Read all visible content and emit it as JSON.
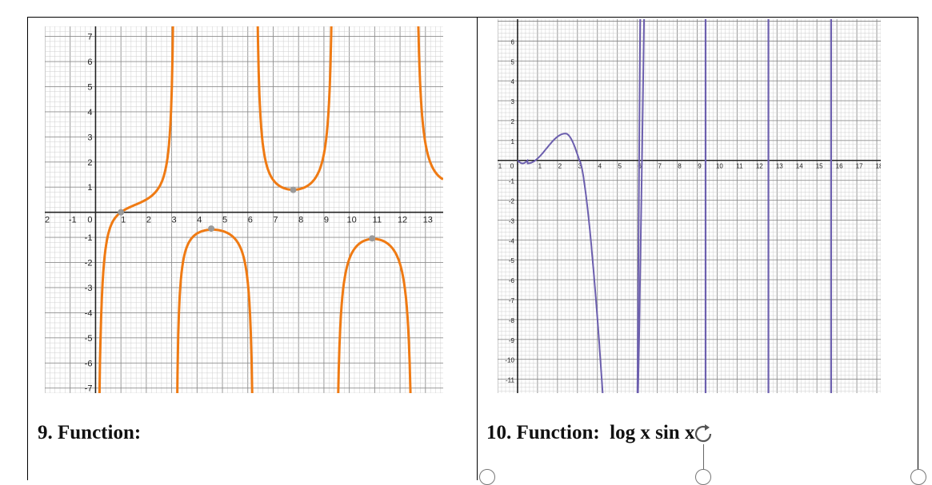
{
  "captions": {
    "left": "9. Function:",
    "right": "10. Function:  log x sin x"
  },
  "colors": {
    "graph9_curve": "#ef7a13",
    "graph10_curve": "#6c5fae",
    "grid_minor": "#cfcfcf",
    "grid_major": "#8e8e8e",
    "axis": "#222222",
    "point": "#9a9a9a"
  },
  "chart_data": [
    {
      "type": "line",
      "title": "",
      "function": "",
      "xlim": [
        -2,
        13.7
      ],
      "ylim": [
        -7.2,
        7.4
      ],
      "x_tick_labels": [
        "2",
        "-1",
        "0",
        "1",
        "2",
        "3",
        "4",
        "5",
        "6",
        "7",
        "8",
        "9",
        "10",
        "11",
        "12",
        "13"
      ],
      "y_tick_labels": [
        "7",
        "6",
        "5",
        "4",
        "3",
        "2",
        "1",
        "-1",
        "-2",
        "-3",
        "-4",
        "-5",
        "-6",
        "-7"
      ],
      "vertical_asymptotes": [
        0,
        3.14,
        6.28,
        9.42,
        12.57
      ],
      "marked_points": [
        {
          "x": 1.0,
          "y": 0.0
        },
        {
          "x": 4.56,
          "y": -0.65
        },
        {
          "x": 7.79,
          "y": 0.89
        },
        {
          "x": 10.9,
          "y": -1.04
        }
      ],
      "grid": true
    },
    {
      "type": "line",
      "title": "",
      "function": "log x sin x",
      "xlim": [
        -1,
        18.2
      ],
      "ylim": [
        -11.7,
        7.1
      ],
      "x_tick_labels": [
        "1",
        "0",
        "1",
        "2",
        "3",
        "4",
        "5",
        "6",
        "7",
        "8",
        "9",
        "10",
        "11",
        "12",
        "13",
        "14",
        "15",
        "16",
        "17",
        "18"
      ],
      "y_tick_labels": [
        "6",
        "5",
        "4",
        "3",
        "2",
        "1",
        "-1",
        "-2",
        "-3",
        "-4",
        "-5",
        "-6",
        "-7",
        "-8",
        "-9",
        "-10",
        "-11"
      ],
      "vertical_lines": [
        9.42,
        12.57,
        15.71
      ],
      "local_max": {
        "x": 2.4,
        "y": 1.35
      },
      "local_min": {
        "x": 0.5,
        "y": -0.15
      },
      "grid": true
    }
  ]
}
